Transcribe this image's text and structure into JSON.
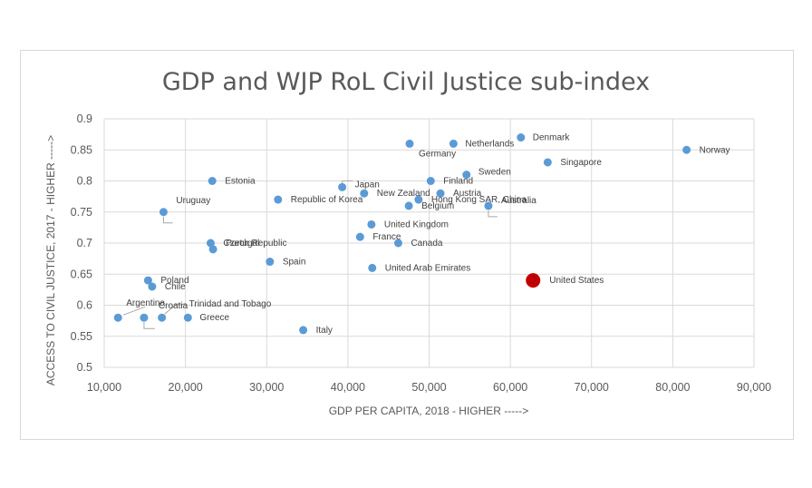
{
  "chart_data": {
    "type": "scatter",
    "title": "GDP and WJP RoL Civil Justice sub-index",
    "xlabel": "GDP PER CAPITA, 2018 - HIGHER ----->",
    "ylabel": "ACCESS TO CIVIL JUSTICE, 2017 - HIGHER ----->",
    "xlim": [
      10000,
      90000
    ],
    "ylim": [
      0.5,
      0.9
    ],
    "grid": true,
    "x_ticks": [
      "10,000",
      "20,000",
      "30,000",
      "40,000",
      "50,000",
      "60,000",
      "70,000",
      "80,000",
      "90,000"
    ],
    "y_ticks": [
      "0.5",
      "0.55",
      "0.6",
      "0.65",
      "0.7",
      "0.75",
      "0.8",
      "0.85",
      "0.9"
    ],
    "colors": {
      "default": "#5b9bd5",
      "highlight": "#c00000"
    },
    "points": [
      {
        "label": "Denmark",
        "x": 61300,
        "y": 0.87
      },
      {
        "label": "Norway",
        "x": 81700,
        "y": 0.85
      },
      {
        "label": "Germany",
        "x": 47600,
        "y": 0.86
      },
      {
        "label": "Netherlands",
        "x": 53000,
        "y": 0.86
      },
      {
        "label": "Singapore",
        "x": 64600,
        "y": 0.83
      },
      {
        "label": "Sweden",
        "x": 54600,
        "y": 0.81
      },
      {
        "label": "Estonia",
        "x": 23300,
        "y": 0.8
      },
      {
        "label": "Japan",
        "x": 39300,
        "y": 0.79
      },
      {
        "label": "Finland",
        "x": 50200,
        "y": 0.8
      },
      {
        "label": "New Zealand",
        "x": 42000,
        "y": 0.78
      },
      {
        "label": "Austria",
        "x": 51400,
        "y": 0.78
      },
      {
        "label": "Republic of Korea",
        "x": 31400,
        "y": 0.77
      },
      {
        "label": "Hong Kong SAR, China",
        "x": 48700,
        "y": 0.77
      },
      {
        "label": "Belgium",
        "x": 47500,
        "y": 0.76
      },
      {
        "label": "Australia",
        "x": 57300,
        "y": 0.76
      },
      {
        "label": "Uruguay",
        "x": 17300,
        "y": 0.75
      },
      {
        "label": "United Kingdom",
        "x": 42900,
        "y": 0.73
      },
      {
        "label": "France",
        "x": 41500,
        "y": 0.71
      },
      {
        "label": "Canada",
        "x": 46200,
        "y": 0.7
      },
      {
        "label": "Czech Republic",
        "x": 23100,
        "y": 0.7
      },
      {
        "label": "Portugal",
        "x": 23400,
        "y": 0.69
      },
      {
        "label": "Spain",
        "x": 30400,
        "y": 0.67
      },
      {
        "label": "United Arab Emirates",
        "x": 43000,
        "y": 0.66
      },
      {
        "label": "United States",
        "x": 62800,
        "y": 0.64,
        "highlight": true
      },
      {
        "label": "Poland",
        "x": 15400,
        "y": 0.64
      },
      {
        "label": "Chile",
        "x": 15900,
        "y": 0.63
      },
      {
        "label": "Argentina",
        "x": 11700,
        "y": 0.58
      },
      {
        "label": "Croatia",
        "x": 14900,
        "y": 0.58
      },
      {
        "label": "Trinidad and Tobago",
        "x": 17100,
        "y": 0.58
      },
      {
        "label": "Greece",
        "x": 20300,
        "y": 0.58
      },
      {
        "label": "Italy",
        "x": 34500,
        "y": 0.56
      }
    ]
  }
}
